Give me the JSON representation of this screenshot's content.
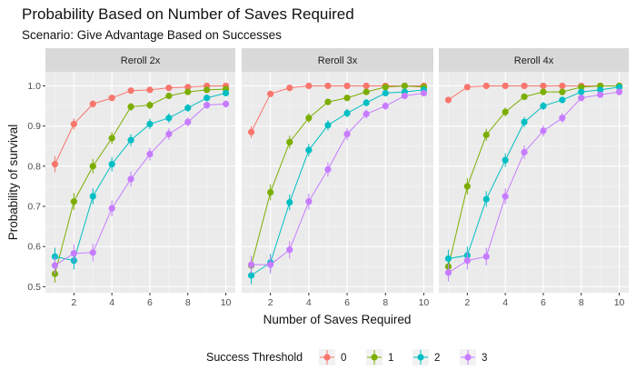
{
  "chart_data": {
    "type": "line",
    "title": "Probability Based on Number of Saves Required",
    "subtitle": "Scenario: Give Advantage Based on Successes",
    "xlabel": "Number of Saves Required",
    "ylabel": "Probability of survival",
    "xlim": [
      0.5,
      10.5
    ],
    "ylim": [
      0.485,
      1.035
    ],
    "xticks": [
      2,
      4,
      6,
      8,
      10
    ],
    "yticks": [
      0.5,
      0.6,
      0.7,
      0.8,
      0.9,
      1.0
    ],
    "ytick_labels": [
      "0.5",
      "0.6",
      "0.7",
      "0.8",
      "0.9",
      "1.0"
    ],
    "grid": true,
    "legend": {
      "title": "Success Threshold",
      "position": "bottom"
    },
    "x": [
      1,
      2,
      3,
      4,
      5,
      6,
      7,
      8,
      9,
      10
    ],
    "series_meta": [
      {
        "name": "0",
        "color": "#F8766D"
      },
      {
        "name": "1",
        "color": "#7CAE00"
      },
      {
        "name": "2",
        "color": "#00BFC4"
      },
      {
        "name": "3",
        "color": "#C77CFF"
      }
    ],
    "panels": [
      {
        "label": "Reroll 2x",
        "series": [
          {
            "name": "0",
            "values": [
              0.805,
              0.905,
              0.955,
              0.97,
              0.988,
              0.99,
              0.995,
              0.997,
              1.0,
              1.0
            ],
            "err": [
              0.02,
              0.014,
              0.009,
              0.007,
              0.004,
              0.004,
              0.003,
              0.002,
              0.001,
              0.001
            ]
          },
          {
            "name": "1",
            "values": [
              0.532,
              0.712,
              0.8,
              0.87,
              0.948,
              0.952,
              0.975,
              0.985,
              0.99,
              0.992
            ],
            "err": [
              0.022,
              0.021,
              0.018,
              0.015,
              0.01,
              0.01,
              0.007,
              0.005,
              0.004,
              0.004
            ]
          },
          {
            "name": "2",
            "values": [
              0.575,
              0.565,
              0.725,
              0.805,
              0.865,
              0.905,
              0.92,
              0.945,
              0.97,
              0.982
            ],
            "err": [
              0.022,
              0.022,
              0.02,
              0.018,
              0.015,
              0.013,
              0.012,
              0.01,
              0.008,
              0.006
            ]
          },
          {
            "name": "3",
            "values": [
              0.553,
              0.583,
              0.585,
              0.695,
              0.768,
              0.83,
              0.88,
              0.91,
              0.952,
              0.955
            ],
            "err": [
              0.022,
              0.022,
              0.022,
              0.02,
              0.019,
              0.016,
              0.014,
              0.012,
              0.009,
              0.009
            ]
          }
        ]
      },
      {
        "label": "Reroll 3x",
        "series": [
          {
            "name": "0",
            "values": [
              0.885,
              0.98,
              0.995,
              1.0,
              1.0,
              1.0,
              1.0,
              1.0,
              1.0,
              1.0
            ],
            "err": [
              0.015,
              0.006,
              0.003,
              0.001,
              0.001,
              0.001,
              0.001,
              0.001,
              0.001,
              0.001
            ]
          },
          {
            "name": "1",
            "values": [
              0.553,
              0.735,
              0.86,
              0.92,
              0.96,
              0.97,
              0.985,
              0.997,
              1.0,
              0.997
            ],
            "err": [
              0.022,
              0.02,
              0.016,
              0.012,
              0.008,
              0.007,
              0.005,
              0.003,
              0.001,
              0.003
            ]
          },
          {
            "name": "2",
            "values": [
              0.528,
              0.56,
              0.71,
              0.84,
              0.902,
              0.932,
              0.958,
              0.982,
              0.985,
              0.99
            ],
            "err": [
              0.022,
              0.022,
              0.02,
              0.016,
              0.013,
              0.011,
              0.009,
              0.006,
              0.005,
              0.004
            ]
          },
          {
            "name": "3",
            "values": [
              0.555,
              0.555,
              0.592,
              0.712,
              0.792,
              0.88,
              0.93,
              0.95,
              0.975,
              0.982
            ],
            "err": [
              0.022,
              0.022,
              0.022,
              0.02,
              0.018,
              0.015,
              0.011,
              0.01,
              0.007,
              0.006
            ]
          }
        ]
      },
      {
        "label": "Reroll 4x",
        "series": [
          {
            "name": "0",
            "values": [
              0.965,
              0.997,
              1.0,
              1.0,
              1.0,
              1.0,
              1.0,
              1.0,
              1.0,
              1.0
            ],
            "err": [
              0.008,
              0.003,
              0.001,
              0.001,
              0.001,
              0.001,
              0.001,
              0.001,
              0.001,
              0.001
            ]
          },
          {
            "name": "1",
            "values": [
              0.55,
              0.75,
              0.878,
              0.935,
              0.973,
              0.985,
              0.985,
              0.997,
              1.0,
              1.0
            ],
            "err": [
              0.022,
              0.02,
              0.015,
              0.011,
              0.007,
              0.005,
              0.005,
              0.003,
              0.001,
              0.001
            ]
          },
          {
            "name": "2",
            "values": [
              0.57,
              0.578,
              0.718,
              0.815,
              0.91,
              0.95,
              0.965,
              0.985,
              0.99,
              0.997
            ],
            "err": [
              0.022,
              0.022,
              0.02,
              0.017,
              0.013,
              0.01,
              0.008,
              0.005,
              0.004,
              0.003
            ]
          },
          {
            "name": "3",
            "values": [
              0.535,
              0.565,
              0.575,
              0.725,
              0.835,
              0.888,
              0.92,
              0.97,
              0.978,
              0.985
            ],
            "err": [
              0.022,
              0.022,
              0.022,
              0.02,
              0.017,
              0.014,
              0.012,
              0.007,
              0.006,
              0.005
            ]
          }
        ]
      }
    ]
  },
  "colors": {
    "panel_background": "#EBEBEB",
    "strip_background": "#D9D9D9",
    "grid_major": "#FFFFFF"
  }
}
